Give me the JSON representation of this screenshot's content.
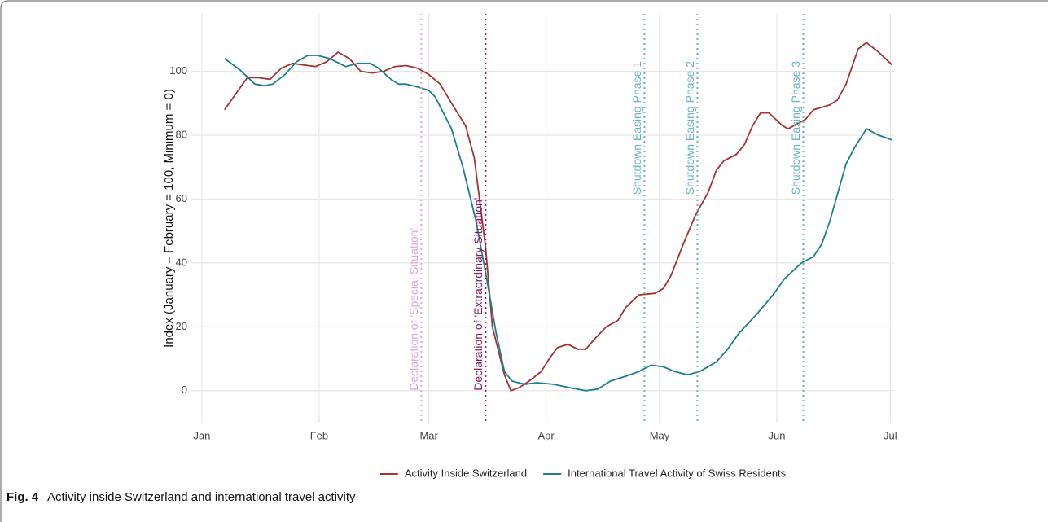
{
  "chart_data": {
    "type": "line",
    "y_label": "Index (January – February = 100, Minimum = 0)",
    "caption_label": "Fig. 4",
    "caption": "Activity inside Switzerland and international travel activity",
    "xlim": [
      -3,
      183
    ],
    "xticks": [
      {
        "value": 0,
        "label": "Jan"
      },
      {
        "value": 31,
        "label": "Feb"
      },
      {
        "value": 60,
        "label": "Mar"
      },
      {
        "value": 91,
        "label": "Apr"
      },
      {
        "value": 121,
        "label": "May"
      },
      {
        "value": 152,
        "label": "Jun"
      },
      {
        "value": 182,
        "label": "Jul"
      }
    ],
    "ylim": [
      -10,
      118
    ],
    "yticks": [
      0,
      20,
      40,
      60,
      80,
      100
    ],
    "grid": true,
    "legend": "bottom",
    "series": [
      {
        "name": "Activity Inside Switzerland",
        "color": "#a83232",
        "x": [
          6,
          9,
          12,
          15,
          18,
          21,
          24,
          27,
          30,
          33,
          36,
          39,
          42,
          45,
          48,
          51,
          54,
          57,
          60,
          63,
          66,
          69.7,
          72,
          75,
          76.8,
          80,
          81.7,
          83.9,
          86.5,
          89.7,
          91.8,
          94,
          96.8,
          99.4,
          101.5,
          103.7,
          106.9,
          110,
          112,
          115.5,
          119.8,
          122,
          124,
          127.3,
          130.5,
          133.8,
          136,
          138,
          141.3,
          143.4,
          145.6,
          147.7,
          149.9,
          153.5,
          155,
          159.6,
          161.7,
          166,
          168,
          170.3,
          173.5,
          175.7,
          178.9,
          182.5
        ],
        "values": [
          88,
          93,
          98,
          98,
          97.5,
          101,
          102.5,
          102,
          101.5,
          103,
          106,
          104,
          100,
          99.5,
          100,
          101.5,
          101.8,
          101,
          99,
          96,
          90,
          83,
          73,
          45,
          20,
          5,
          0,
          1,
          3,
          6,
          10,
          13.5,
          14.5,
          13,
          13,
          16,
          20,
          22,
          26,
          30,
          30.5,
          32,
          36,
          46,
          55,
          62,
          69,
          72,
          74,
          77,
          83,
          87,
          87,
          83,
          82,
          85,
          88,
          89.5,
          91,
          96,
          107,
          109,
          106,
          102
        ]
      },
      {
        "name": "International Travel Activity of Swiss Residents",
        "color": "#1a7f8e",
        "x": [
          6,
          10,
          14,
          16.5,
          18.7,
          22,
          25,
          28,
          30.5,
          33.8,
          38,
          41.3,
          44.5,
          46.7,
          50,
          52,
          54,
          57.4,
          60,
          61.7,
          66,
          69,
          72.5,
          75.3,
          77.8,
          80,
          82,
          85.4,
          88.6,
          92.9,
          97,
          101.5,
          104.7,
          108,
          112,
          115.5,
          118.7,
          122,
          125,
          128.4,
          131.6,
          136,
          139,
          142,
          146.7,
          151,
          154,
          158.5,
          161.7,
          163.9,
          166,
          170.3,
          172.5,
          175.7,
          178.9,
          182.5
        ],
        "values": [
          104,
          100.5,
          96,
          95.5,
          96,
          99,
          103,
          105,
          105,
          104,
          101.5,
          102.5,
          102.5,
          101,
          97.5,
          96,
          96,
          95,
          94,
          92,
          82,
          70,
          53,
          35,
          18,
          6,
          3,
          2,
          2.5,
          2,
          1,
          0,
          0.5,
          3,
          4.5,
          6,
          8,
          7.5,
          6,
          5,
          6,
          9,
          13,
          18,
          24,
          30,
          35,
          40,
          42,
          46,
          53,
          71,
          76,
          82,
          80,
          78.5
        ]
      }
    ],
    "vlines": [
      {
        "x": 58,
        "label": "Declaration of 'Special Situation'",
        "color": "#e0a6d6"
      },
      {
        "x": 75,
        "label": "Declaration of 'Extraordinary Situation'",
        "color": "#8b1a5e"
      },
      {
        "x": 117,
        "label": "Shutdown Easing Phase 1",
        "color": "#6ab4c6"
      },
      {
        "x": 131,
        "label": "Shutdown Easing Phase 2",
        "color": "#6ab4c6"
      },
      {
        "x": 159,
        "label": "Shutdown Easing Phase 3",
        "color": "#6ab4c6"
      }
    ]
  }
}
